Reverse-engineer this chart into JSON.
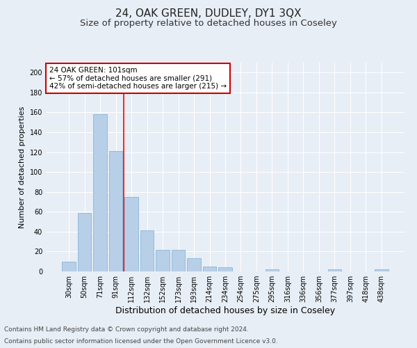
{
  "title1": "24, OAK GREEN, DUDLEY, DY1 3QX",
  "title2": "Size of property relative to detached houses in Coseley",
  "xlabel": "Distribution of detached houses by size in Coseley",
  "ylabel": "Number of detached properties",
  "categories": [
    "30sqm",
    "50sqm",
    "71sqm",
    "91sqm",
    "112sqm",
    "132sqm",
    "152sqm",
    "173sqm",
    "193sqm",
    "214sqm",
    "234sqm",
    "254sqm",
    "275sqm",
    "295sqm",
    "316sqm",
    "336sqm",
    "356sqm",
    "377sqm",
    "397sqm",
    "418sqm",
    "438sqm"
  ],
  "values": [
    10,
    59,
    158,
    121,
    75,
    41,
    22,
    22,
    13,
    5,
    4,
    0,
    0,
    2,
    0,
    0,
    0,
    2,
    0,
    0,
    2
  ],
  "bar_color": "#b8cfe8",
  "bar_edge_color": "#7aadd4",
  "red_line_x": 3.5,
  "annotation_text": "24 OAK GREEN: 101sqm\n← 57% of detached houses are smaller (291)\n42% of semi-detached houses are larger (215) →",
  "annotation_box_color": "#ffffff",
  "annotation_box_edge": "#cc0000",
  "ylim": [
    0,
    210
  ],
  "yticks": [
    0,
    20,
    40,
    60,
    80,
    100,
    120,
    140,
    160,
    180,
    200
  ],
  "footer1": "Contains HM Land Registry data © Crown copyright and database right 2024.",
  "footer2": "Contains public sector information licensed under the Open Government Licence v3.0.",
  "background_color": "#e8eef5",
  "plot_bg_color": "#e8eef5",
  "grid_color": "#ffffff",
  "title1_fontsize": 11,
  "title2_fontsize": 9.5,
  "xlabel_fontsize": 9,
  "ylabel_fontsize": 8,
  "tick_fontsize": 7,
  "footer_fontsize": 6.5,
  "annotation_fontsize": 7.5
}
